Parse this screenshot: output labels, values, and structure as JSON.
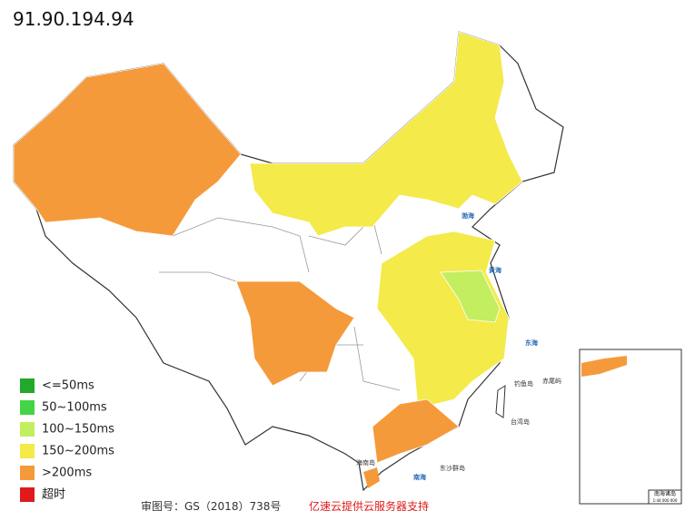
{
  "title": "91.90.194.94",
  "legend": [
    {
      "label": "<=50ms",
      "color": "#22a82a"
    },
    {
      "label": "50~100ms",
      "color": "#44d544"
    },
    {
      "label": "100~150ms",
      "color": "#c3ee5f"
    },
    {
      "label": "150~200ms",
      "color": "#f4ea4a"
    },
    {
      "label": ">200ms",
      "color": "#f59a3a"
    },
    {
      "label": "超时",
      "color": "#e01a1a"
    }
  ],
  "sea_labels": [
    "渤海",
    "黄海",
    "东海",
    "南海"
  ],
  "island_labels": [
    "钓鱼岛",
    "赤尾屿",
    "台湾岛",
    "海南岛",
    "东沙群岛"
  ],
  "inset": {
    "title": "南海诸岛",
    "scale": "1:44 000 000"
  },
  "footer": {
    "approval": "审图号：GS（2018）738号",
    "sponsor": "亿速云提供云服务器支持"
  }
}
